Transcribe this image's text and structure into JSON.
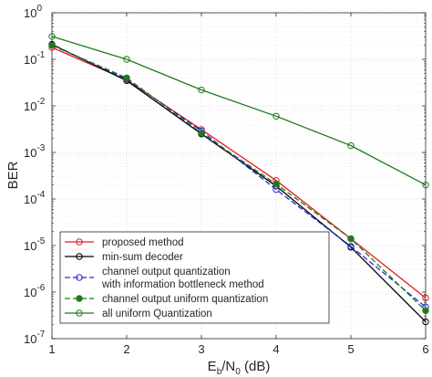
{
  "chart_data": {
    "type": "line",
    "xlabel": {
      "main": "E",
      "sub1": "b",
      "mid": "/N",
      "sub2": "0",
      "unit": " (dB)"
    },
    "ylabel": "BER",
    "xscale": "linear",
    "yscale": "log",
    "xlim": [
      1,
      6
    ],
    "ylim": [
      1e-07,
      1
    ],
    "grid": true,
    "legend_position": "bottom-left",
    "x_ticks": [
      "1",
      "2",
      "3",
      "4",
      "5",
      "6"
    ],
    "y_ticks": [
      {
        "base": "10",
        "exp": "0",
        "value": 1
      },
      {
        "base": "10",
        "exp": "-1",
        "value": 0.1
      },
      {
        "base": "10",
        "exp": "-2",
        "value": 0.01
      },
      {
        "base": "10",
        "exp": "-3",
        "value": 0.001
      },
      {
        "base": "10",
        "exp": "-4",
        "value": 0.0001
      },
      {
        "base": "10",
        "exp": "-5",
        "value": 1e-05
      },
      {
        "base": "10",
        "exp": "-6",
        "value": 1e-06
      },
      {
        "base": "10",
        "exp": "-7",
        "value": 1e-07
      }
    ],
    "x": [
      1,
      2,
      3,
      4,
      5,
      6
    ],
    "series": [
      {
        "name": "proposed method",
        "color": "#e41a1c",
        "dash": "solid",
        "marker": "open-circle",
        "values": [
          0.18,
          0.036,
          0.0031,
          0.00025,
          1.4e-05,
          7.5e-07
        ]
      },
      {
        "name": "min-sum decoder",
        "color": "#000000",
        "dash": "solid",
        "marker": "open-circle",
        "values": [
          0.21,
          0.035,
          0.0025,
          0.00019,
          9.2e-06,
          2.3e-07
        ]
      },
      {
        "name": "channel output quantization\nwith information bottleneck method",
        "color": "#2b2bd8",
        "dash": "dashed",
        "marker": "open-circle",
        "values": [
          0.2,
          0.038,
          0.0029,
          0.00016,
          9.6e-06,
          4.8e-07
        ]
      },
      {
        "name": "channel output uniform quantization",
        "color": "#1e7b1e",
        "dash": "dashed",
        "marker": "filled-circle",
        "values": [
          0.2,
          0.04,
          0.0026,
          0.00021,
          1.4e-05,
          4e-07
        ]
      },
      {
        "name": "all uniform Quantization",
        "color": "#1e7b1e",
        "dash": "solid",
        "marker": "open-circle",
        "values": [
          0.31,
          0.1,
          0.022,
          0.006,
          0.0014,
          0.0002
        ]
      }
    ]
  }
}
